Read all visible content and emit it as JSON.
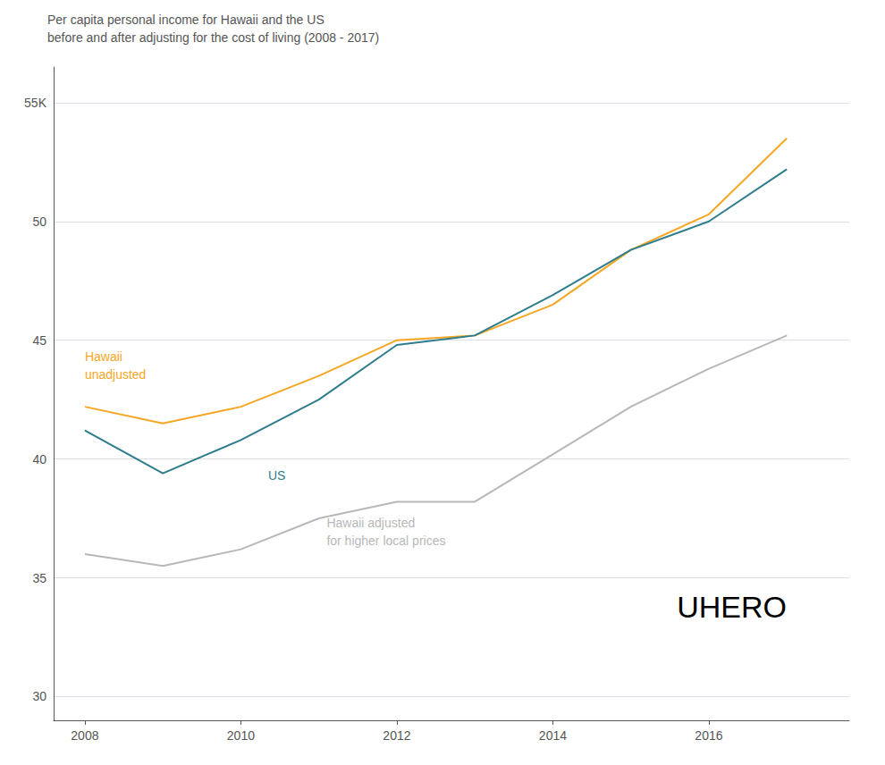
{
  "chart_data": {
    "type": "line",
    "title": "Per capita personal income for Hawaii and the US",
    "subtitle": "before and after adjusting for the cost of living (2008 - 2017)",
    "x": [
      2008,
      2009,
      2010,
      2011,
      2012,
      2013,
      2014,
      2015,
      2016,
      2017
    ],
    "series": [
      {
        "color": "#f5a623",
        "values": [
          42200,
          41500,
          42200,
          43500,
          45000,
          45200,
          46500,
          48800,
          50300,
          53500
        ]
      },
      {
        "color": "#2e7d8c",
        "values": [
          41200,
          39400,
          40800,
          42500,
          44800,
          45200,
          46900,
          48800,
          50000,
          52200
        ]
      },
      {
        "color": "#b8b8b8",
        "values": [
          36000,
          35500,
          36200,
          37500,
          38200,
          38200,
          40200,
          42200,
          43800,
          45200
        ]
      }
    ],
    "xlim": [
      2007.6,
      2017.8
    ],
    "xticks": [
      2008,
      2010,
      2012,
      2014,
      2016
    ],
    "ylim": [
      29000,
      56500
    ],
    "yticks": [
      {
        "value": 30000,
        "label": "30"
      },
      {
        "value": 35000,
        "label": "35"
      },
      {
        "value": 40000,
        "label": "40"
      },
      {
        "value": 45000,
        "label": "45"
      },
      {
        "value": 50000,
        "label": "50"
      },
      {
        "value": 55000,
        "label": "55K"
      }
    ],
    "grid": true,
    "annotations": [
      {
        "text": "Hawaii\nunadjusted",
        "x": 2008.0,
        "y": 44700,
        "color": "#f5a623"
      },
      {
        "text": "US",
        "x": 2010.35,
        "y": 39700,
        "color": "#2e7d8c"
      },
      {
        "text": "Hawaii adjusted\nfor higher local prices",
        "x": 2011.1,
        "y": 37700,
        "color": "#b8b8b8"
      },
      {
        "text": "UH",
        "color": "#7a9ab5"
      },
      {
        "text": "ERO",
        "color": "#b8c8d5"
      }
    ]
  }
}
